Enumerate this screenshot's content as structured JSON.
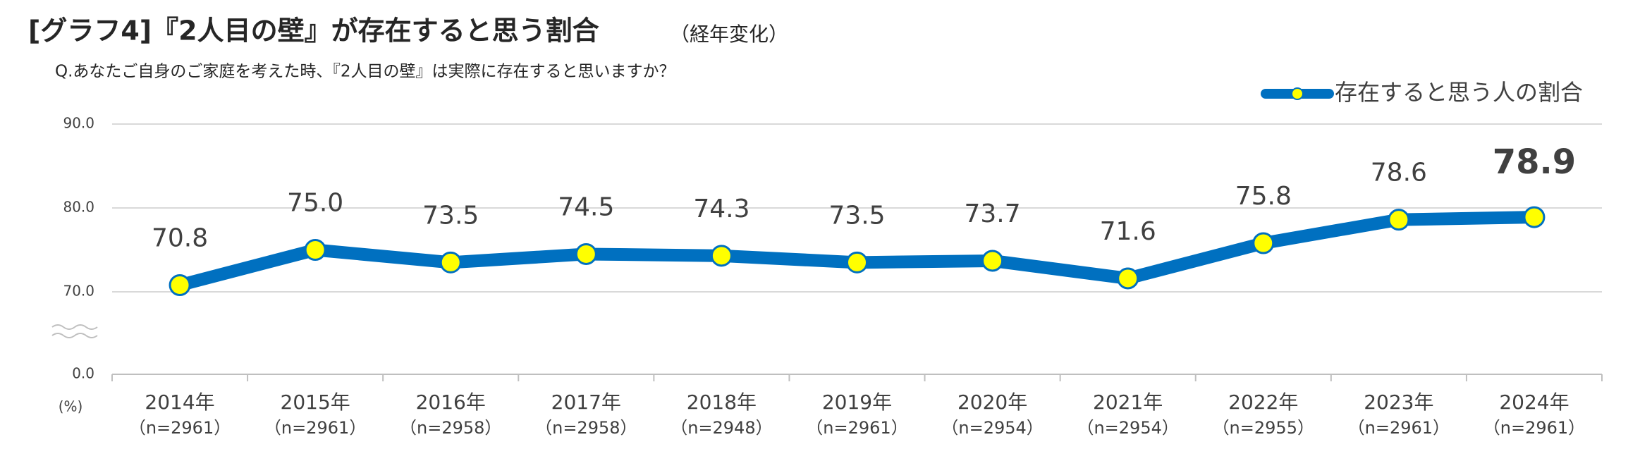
{
  "chart_data": {
    "type": "line",
    "title": "[グラフ4]『2人目の壁』が存在すると思う割合",
    "title_note": "（経年変化）",
    "subtitle": "Q.あなたご自身のご家庭を考えた時、『2人目の壁』は実際に存在すると思いますか？",
    "y_label": "(%)",
    "categories": [
      "2014年",
      "2015年",
      "2016年",
      "2017年",
      "2018年",
      "2019年",
      "2020年",
      "2021年",
      "2022年",
      "2023年",
      "2024年"
    ],
    "sample_sizes": [
      "（n=2961）",
      "（n=2961）",
      "（n=2958）",
      "（n=2958）",
      "（n=2948）",
      "（n=2961）",
      "（n=2954）",
      "（n=2954）",
      "（n=2955）",
      "（n=2961）",
      "（n=2961）"
    ],
    "series": [
      {
        "name": "存在すると思う人の割合",
        "color": "#0070c0",
        "marker_color": "#ffff00",
        "values": [
          70.8,
          75.0,
          73.5,
          74.5,
          74.3,
          73.5,
          73.7,
          71.6,
          75.8,
          78.6,
          78.9
        ],
        "value_labels": [
          "70.8",
          "75.0",
          "73.5",
          "74.5",
          "74.3",
          "73.5",
          "73.7",
          "71.6",
          "75.8",
          "78.6",
          "78.9"
        ]
      }
    ],
    "ylim": [
      0,
      90
    ],
    "axis_break": [
      0,
      70
    ],
    "yticks": [
      {
        "value": 0,
        "label": "0.0"
      },
      {
        "value": 70,
        "label": "70.0"
      },
      {
        "value": 80,
        "label": "80.0"
      },
      {
        "value": 90,
        "label": "90.0"
      }
    ],
    "grid": true,
    "legend": "top-right"
  }
}
